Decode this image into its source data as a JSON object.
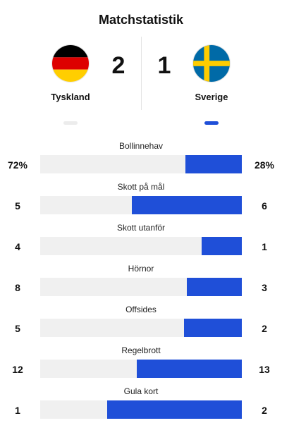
{
  "title": "Matchstatistik",
  "home": {
    "name": "Tyskland",
    "score": "2",
    "flag_icon": "germany-flag-icon",
    "colors": [
      "#000000",
      "#dd0000",
      "#ffce00"
    ]
  },
  "away": {
    "name": "Sverige",
    "score": "1",
    "flag_icon": "sweden-flag-icon",
    "colors": [
      "#006aa7",
      "#fecc00"
    ]
  },
  "accent_color": "#1f4fd8",
  "stats": [
    {
      "label": "Bollinnehav",
      "home": "72%",
      "away": "28%",
      "away_fraction": 0.28
    },
    {
      "label": "Skott på mål",
      "home": "5",
      "away": "6",
      "away_fraction": 0.545
    },
    {
      "label": "Skott utanför",
      "home": "4",
      "away": "1",
      "away_fraction": 0.2
    },
    {
      "label": "Hörnor",
      "home": "8",
      "away": "3",
      "away_fraction": 0.273
    },
    {
      "label": "Offsides",
      "home": "5",
      "away": "2",
      "away_fraction": 0.286
    },
    {
      "label": "Regelbrott",
      "home": "12",
      "away": "13",
      "away_fraction": 0.52
    },
    {
      "label": "Gula kort",
      "home": "1",
      "away": "2",
      "away_fraction": 0.667
    }
  ]
}
